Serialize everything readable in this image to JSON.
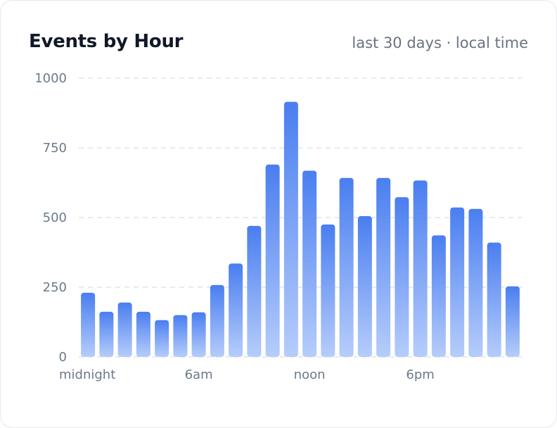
{
  "header": {
    "title": "Events by Hour",
    "subtitle": "last 30 days · local time"
  },
  "chart_data": {
    "type": "bar",
    "title": "Events by Hour",
    "subtitle": "last 30 days · local time",
    "xlabel": "",
    "ylabel": "",
    "ylim": [
      0,
      1000
    ],
    "yticks": [
      0,
      250,
      500,
      750,
      1000
    ],
    "grid": true,
    "categories": [
      "0",
      "1",
      "2",
      "3",
      "4",
      "5",
      "6",
      "7",
      "8",
      "9",
      "10",
      "11",
      "12",
      "13",
      "14",
      "15",
      "16",
      "17",
      "18",
      "19",
      "20",
      "21",
      "22",
      "23"
    ],
    "x_tick_labels": [
      {
        "index": 0,
        "label": "midnight"
      },
      {
        "index": 6,
        "label": "6am"
      },
      {
        "index": 12,
        "label": "noon"
      },
      {
        "index": 18,
        "label": "6pm"
      }
    ],
    "values": [
      230,
      162,
      195,
      162,
      132,
      150,
      160,
      258,
      335,
      470,
      690,
      915,
      668,
      475,
      642,
      505,
      642,
      573,
      633,
      436,
      536,
      531,
      410,
      253
    ],
    "colors": {
      "bar_top": "#4a7ef0",
      "bar_bottom": "#b6cdfb",
      "grid": "#dfe3ea",
      "tick": "#6b7a8c"
    }
  }
}
